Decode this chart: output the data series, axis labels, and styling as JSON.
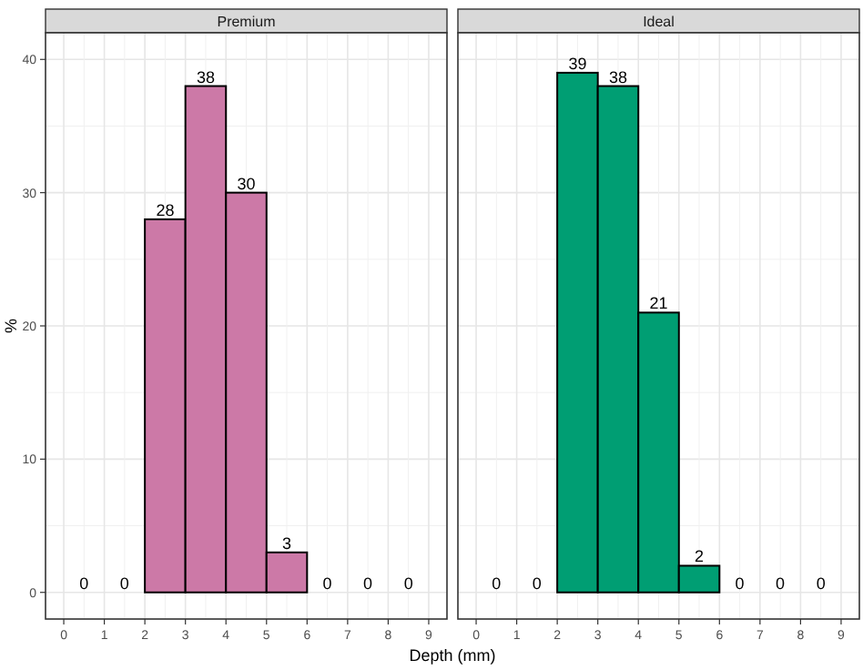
{
  "chart_data": [
    {
      "type": "histogram",
      "title": "Premium",
      "ylabel": "%",
      "xlabel": "Depth (mm)",
      "bins": [
        0,
        1,
        2,
        3,
        4,
        5,
        6,
        7,
        8,
        9
      ],
      "values": [
        0,
        0,
        28,
        38,
        30,
        3,
        0,
        0,
        0
      ],
      "color": "#cc79a7",
      "data_labels": true,
      "xlim": [
        -0.45,
        9.45
      ],
      "ylim": [
        -2,
        42
      ],
      "xticks": [
        0,
        1,
        2,
        3,
        4,
        5,
        6,
        7,
        8,
        9
      ],
      "yticks": [
        0,
        10,
        20,
        30,
        40
      ],
      "grid": true
    },
    {
      "type": "histogram",
      "title": "Ideal",
      "bins": [
        0,
        1,
        2,
        3,
        4,
        5,
        6,
        7,
        8,
        9
      ],
      "values": [
        0,
        0,
        39,
        38,
        21,
        2,
        0,
        0,
        0
      ],
      "color": "#009e73",
      "data_labels": true,
      "xlim": [
        -0.45,
        9.45
      ],
      "ylim": [
        -2,
        42
      ],
      "xticks": [
        0,
        1,
        2,
        3,
        4,
        5,
        6,
        7,
        8,
        9
      ],
      "yticks": [
        0,
        10,
        20,
        30,
        40
      ],
      "grid": true,
      "tick_labels": "x"
    }
  ]
}
